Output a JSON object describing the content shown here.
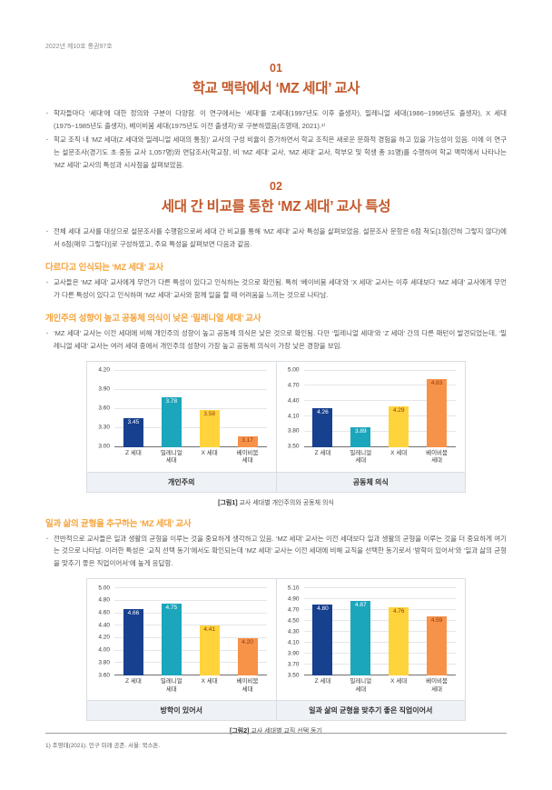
{
  "page": {
    "header": "2022년 제10호 통권97호",
    "footnote": "1)  조영태(2021). 인구 미래 공존. 서울: 북스톤."
  },
  "sections": [
    {
      "number": "01",
      "title": "학교 맥락에서 ‘MZ 세대’ 교사",
      "bullets": [
        "학자들마다 ‘세대’에 대한 정의와 구분이 다양함. 이 연구에서는 ‘세대’를 ‘Z세대(1997년도 이후 출생자), 밀레니얼 세대(1986~1996년도 출생자), X 세대(1975~1985년도 출생자), 베이비붐 세대(1975년도 이전 출생자)’로 구분하였음(조영태, 2021).¹⁾",
        "학교 조직 내 ‘MZ 세대(Z 세대와 밀레니얼 세대의 통칭)’ 교사의 구성 비율이 증가하면서 학교 조직은 새로운 문화적 경험을 하고 있을 가능성이 있음. 이에 이 연구는 설문조사(경기도 초·중등 교사 1,057명)와 면담조사(학교장, 비 ‘MZ 세대’ 교사, ‘MZ 세대’ 교사, 학부모 및 학생 총 31명)를 수행하여 학교 맥락에서 나타나는 ‘MZ 세대’ 교사의 특성과 시사점을 살펴보았음."
      ]
    },
    {
      "number": "02",
      "title": "세대 간 비교를 통한 ‘MZ 세대’ 교사 특성",
      "bullets": [
        "전체 세대 교사를 대상으로 설문조사를 수행함으로써 세대 간 비교를 통해 ‘MZ 세대’ 교사 특성을 살펴보았음. 설문조사 문항은 6점 척도[1점(전혀 그렇지 않다)에서 6점(매우 그렇다)]로 구성하였고, 주요 특성을 살펴보면 다음과 같음."
      ]
    }
  ],
  "subsections": [
    {
      "heading": "다르다고 인식되는 ‘MZ 세대’ 교사",
      "bullets": [
        "교사들은 ‘MZ 세대’ 교사에게 무언가 다른 특성이 있다고 인식하는 것으로 확인됨. 특히 ‘베이비붐 세대’와 ‘X 세대’ 교사는 이후 세대보다 ‘MZ 세대’ 교사에게 무언가 다른 특성이 있다고 인식하며 ‘MZ 세대’ 교사와 함께 일을 할 때 어려움을 느끼는 것으로 나타남."
      ]
    },
    {
      "heading": "개인주의 성향이 높고 공동체 의식이 낮은 ‘밀레니얼 세대’ 교사",
      "bullets": [
        "‘MZ 세대’ 교사는 이전 세대에 비해 개인주의 성향이 높고 공동체 의식은 낮은 것으로 확인됨. 다만 ‘밀레니얼 세대’와 ‘Z 세대’ 간의 다른 패턴이 발견되었는데, ‘밀레니얼 세대’ 교사는 여러 세대 중에서 개인주의 성향이 가장 높고 공동체 의식이 가장 낮은 경향을 보임."
      ]
    },
    {
      "heading": "일과 삶의 균형을 추구하는 ‘MZ 세대’ 교사",
      "bullets": [
        "전반적으로 교사들은 일과 생활의 균형을 이루는 것을 중요하게 생각하고 있음. ‘MZ 세대’ 교사는 이전 세대보다 일과 생활의 균형을 이루는 것을 더 중요하게 여기는 것으로 나타남. 이러한 특성은 ‘교직 선택 동기’에서도 확인되는데 ‘MZ 세대’ 교사는 이전 세대에 비해 교직을 선택한 동기로서 ‘방학이 있어서’와 ‘일과 삶의 균형을 맞추기 좋은 직업이어서’에 높게 응답함."
      ]
    }
  ],
  "figures": [
    {
      "tag": "[그림1]",
      "text": " 교사 세대별 개인주의와 공동체 의식"
    },
    {
      "tag": "[그림2]",
      "text": " 교사 세대별 교직 선택 동기"
    }
  ],
  "chart_data": [
    {
      "type": "bar",
      "title": "개인주의",
      "categories": [
        [
          "Z 세대"
        ],
        [
          "밀레니얼",
          "세대"
        ],
        [
          "X 세대"
        ],
        [
          "베이비붐",
          "세대"
        ]
      ],
      "values": [
        3.45,
        3.78,
        3.58,
        3.17
      ],
      "yticks": [
        "3.00",
        "3.30",
        "3.60",
        "3.90",
        "4.20"
      ],
      "ylim": [
        3.0,
        4.2
      ],
      "grid": true,
      "legend": "none"
    },
    {
      "type": "bar",
      "title": "공동체 의식",
      "categories": [
        [
          "Z 세대"
        ],
        [
          "밀레니얼",
          "세대"
        ],
        [
          "X 세대"
        ],
        [
          "베이비붐",
          "세대"
        ]
      ],
      "values": [
        4.26,
        3.89,
        4.29,
        4.83
      ],
      "yticks": [
        "3.50",
        "3.80",
        "4.10",
        "4.40",
        "4.70",
        "5.00"
      ],
      "ylim": [
        3.5,
        5.0
      ],
      "grid": true,
      "legend": "none"
    },
    {
      "type": "bar",
      "title": "방학이 있어서",
      "categories": [
        [
          "Z 세대"
        ],
        [
          "밀레니얼",
          "세대"
        ],
        [
          "X 세대"
        ],
        [
          "베이비붐",
          "세대"
        ]
      ],
      "values": [
        4.66,
        4.75,
        4.41,
        4.2
      ],
      "yticks": [
        "3.60",
        "3.80",
        "4.00",
        "4.20",
        "4.40",
        "4.60",
        "4.80",
        "5.00"
      ],
      "ylim": [
        3.6,
        5.0
      ],
      "grid": true,
      "legend": "none"
    },
    {
      "type": "bar",
      "title": "일과 삶의 균형을 맞추기 좋은 직업이어서",
      "categories": [
        [
          "Z 세대"
        ],
        [
          "밀레니얼",
          "세대"
        ],
        [
          "X 세대"
        ],
        [
          "베이비붐",
          "세대"
        ]
      ],
      "values": [
        4.8,
        4.87,
        4.76,
        4.59
      ],
      "yticks": [
        "3.50",
        "3.70",
        "3.90",
        "4.10",
        "4.30",
        "4.50",
        "4.70",
        "4.90",
        "5.10"
      ],
      "ylim": [
        3.5,
        5.1
      ],
      "grid": true,
      "legend": "none"
    }
  ],
  "colors": {
    "accent_section": "#c3592a",
    "accent_subheading": "#f5a33c",
    "bar_palette": [
      "#17408f",
      "#1ba6bc",
      "#ffd33c",
      "#f79249"
    ],
    "bar_label_colors": [
      "#ffffff",
      "#ffffff",
      "#8c3b12",
      "#8c3b12"
    ],
    "label_bar_bg": "#eef1f5",
    "gridline": "#e3e6ea"
  }
}
